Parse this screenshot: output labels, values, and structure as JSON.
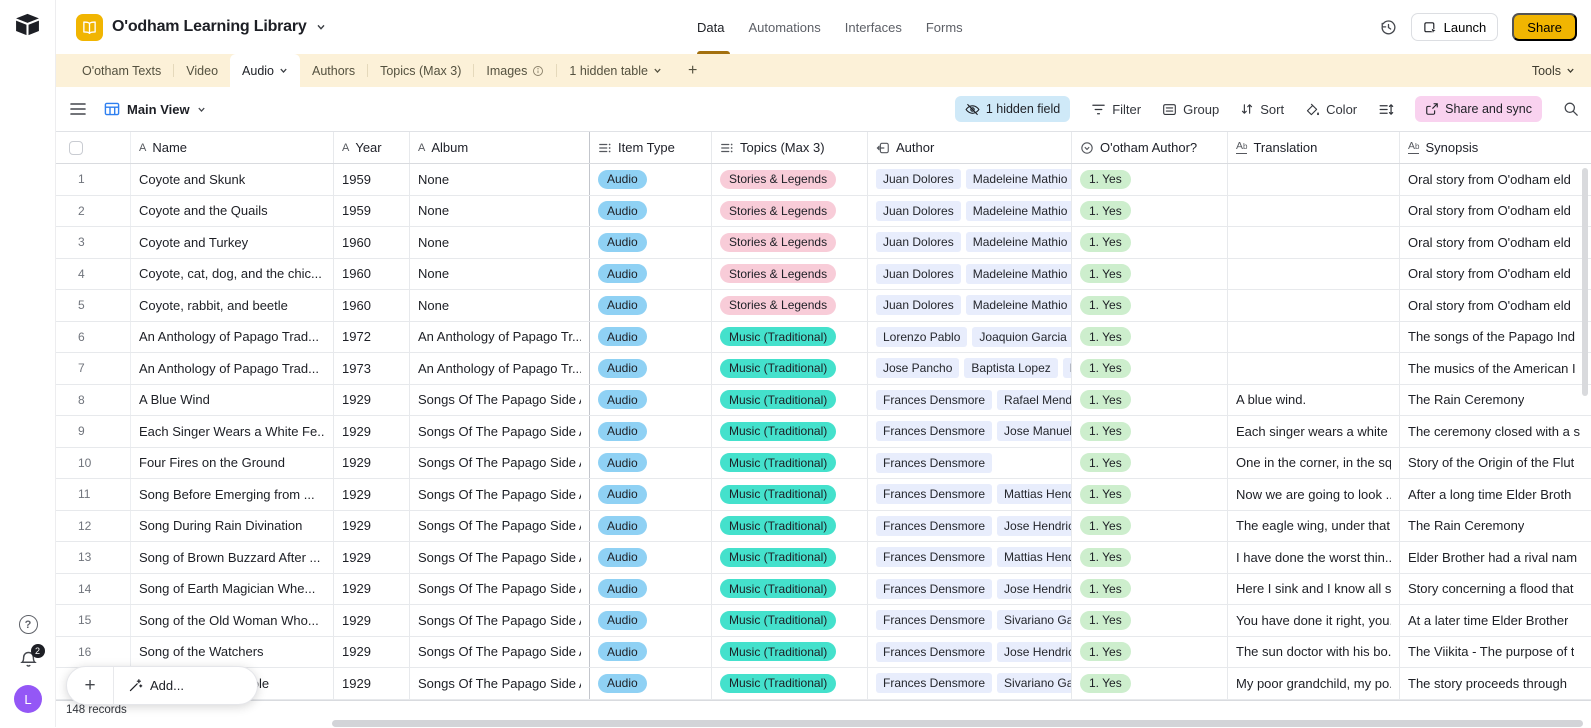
{
  "header": {
    "title": "O'odham Learning Library",
    "nav_items": [
      "Data",
      "Automations",
      "Interfaces",
      "Forms"
    ],
    "active_nav": "Data",
    "launch_label": "Launch",
    "share_label": "Share"
  },
  "tabs": {
    "items": [
      {
        "label": "O'otham Texts"
      },
      {
        "label": "Video"
      },
      {
        "label": "Audio",
        "active": true,
        "chevron": true
      },
      {
        "label": "Authors"
      },
      {
        "label": "Topics (Max 3)"
      },
      {
        "label": "Images",
        "info": true
      },
      {
        "label": "1 hidden table",
        "chevron": true
      }
    ],
    "add_label": "+",
    "tools_label": "Tools"
  },
  "toolbar": {
    "view_name": "Main View",
    "hidden_field_label": "1 hidden field",
    "filter_label": "Filter",
    "group_label": "Group",
    "sort_label": "Sort",
    "color_label": "Color",
    "share_sync_label": "Share and sync"
  },
  "table": {
    "columns": [
      {
        "key": "num",
        "label": "",
        "icon": "checkbox"
      },
      {
        "key": "name",
        "label": "Name",
        "icon": "text-field-icon"
      },
      {
        "key": "year",
        "label": "Year",
        "icon": "text-field-icon"
      },
      {
        "key": "album",
        "label": "Album",
        "icon": "text-field-icon"
      },
      {
        "key": "item_type",
        "label": "Item Type",
        "icon": "select-icon"
      },
      {
        "key": "topics",
        "label": "Topics (Max 3)",
        "icon": "multi-select-icon"
      },
      {
        "key": "author",
        "label": "Author",
        "icon": "linked-record-icon"
      },
      {
        "key": "ootham",
        "label": "O'otham Author?",
        "icon": "single-select-icon"
      },
      {
        "key": "translation",
        "label": "Translation",
        "icon": "long-text-icon"
      },
      {
        "key": "synopsis",
        "label": "Synopsis",
        "icon": "long-text-icon"
      }
    ],
    "rows": [
      {
        "num": 1,
        "name": "Coyote and Skunk",
        "year": "1959",
        "album": "None",
        "item_type": "Audio",
        "topics": "Stories & Legends",
        "authors": [
          "Juan Dolores",
          "Madeleine Mathio"
        ],
        "ootham": "1. Yes",
        "translation": "",
        "synopsis": "Oral story from O'odham eld"
      },
      {
        "num": 2,
        "name": "Coyote and the Quails",
        "year": "1959",
        "album": "None",
        "item_type": "Audio",
        "topics": "Stories & Legends",
        "authors": [
          "Juan Dolores",
          "Madeleine Mathio"
        ],
        "ootham": "1. Yes",
        "translation": "",
        "synopsis": "Oral story from O'odham eld"
      },
      {
        "num": 3,
        "name": "Coyote and Turkey",
        "year": "1960",
        "album": "None",
        "item_type": "Audio",
        "topics": "Stories & Legends",
        "authors": [
          "Juan Dolores",
          "Madeleine Mathio"
        ],
        "ootham": "1. Yes",
        "translation": "",
        "synopsis": "Oral story from O'odham eld"
      },
      {
        "num": 4,
        "name": "Coyote, cat, dog, and the chic...",
        "year": "1960",
        "album": "None",
        "item_type": "Audio",
        "topics": "Stories & Legends",
        "authors": [
          "Juan Dolores",
          "Madeleine Mathio"
        ],
        "ootham": "1. Yes",
        "translation": "",
        "synopsis": "Oral story from O'odham eld"
      },
      {
        "num": 5,
        "name": "Coyote, rabbit, and beetle",
        "year": "1960",
        "album": "None",
        "item_type": "Audio",
        "topics": "Stories & Legends",
        "authors": [
          "Juan Dolores",
          "Madeleine Mathio"
        ],
        "ootham": "1. Yes",
        "translation": "",
        "synopsis": "Oral story from O'odham eld"
      },
      {
        "num": 6,
        "name": "An Anthology of Papago Trad...",
        "year": "1972",
        "album": "An Anthology of Papago Tr...",
        "item_type": "Audio",
        "topics": "Music (Traditional)",
        "authors": [
          "Lorenzo Pablo",
          "Joaquion Garcia"
        ],
        "ootham": "1. Yes",
        "translation": "",
        "synopsis": "The songs of the Papago Ind"
      },
      {
        "num": 7,
        "name": "An Anthology of Papago Trad...",
        "year": "1973",
        "album": "An Anthology of Papago Tr...",
        "item_type": "Audio",
        "topics": "Music (Traditional)",
        "authors": [
          "Jose Pancho",
          "Baptista Lopez",
          "M"
        ],
        "ootham": "1. Yes",
        "translation": "",
        "synopsis": "The musics of the American I"
      },
      {
        "num": 8,
        "name": "A Blue Wind",
        "year": "1929",
        "album": "Songs Of The Papago Side A",
        "item_type": "Audio",
        "topics": "Music (Traditional)",
        "authors": [
          "Frances Densmore",
          "Rafael Mend"
        ],
        "ootham": "1. Yes",
        "translation": "A blue wind.",
        "synopsis": "The Rain Ceremony"
      },
      {
        "num": 9,
        "name": "Each Singer Wears a White Fe...",
        "year": "1929",
        "album": "Songs Of The Papago Side A",
        "item_type": "Audio",
        "topics": "Music (Traditional)",
        "authors": [
          "Frances Densmore",
          "Jose Manuel"
        ],
        "ootham": "1. Yes",
        "translation": "Each singer wears a white f...",
        "synopsis": "The ceremony closed with a s"
      },
      {
        "num": 10,
        "name": "Four Fires on the Ground",
        "year": "1929",
        "album": "Songs Of The Papago Side A",
        "item_type": "Audio",
        "topics": "Music (Traditional)",
        "authors": [
          "Frances Densmore"
        ],
        "ootham": "1. Yes",
        "translation": "One in the corner, in the sq...",
        "synopsis": "Story of the Origin of the Flut"
      },
      {
        "num": 11,
        "name": "Song Before Emerging from ...",
        "year": "1929",
        "album": "Songs Of The Papago Side A",
        "item_type": "Audio",
        "topics": "Music (Traditional)",
        "authors": [
          "Frances Densmore",
          "Mattias Hend"
        ],
        "ootham": "1. Yes",
        "translation": "Now we are going to look ...",
        "synopsis": "After a long time Elder Broth"
      },
      {
        "num": 12,
        "name": "Song During Rain Divination",
        "year": "1929",
        "album": "Songs Of The Papago Side A",
        "item_type": "Audio",
        "topics": "Music (Traditional)",
        "authors": [
          "Frances Densmore",
          "Jose Hendric"
        ],
        "ootham": "1. Yes",
        "translation": "The eagle wing, under that ...",
        "synopsis": "The Rain Ceremony"
      },
      {
        "num": 13,
        "name": "Song of Brown Buzzard After ...",
        "year": "1929",
        "album": "Songs Of The Papago Side A",
        "item_type": "Audio",
        "topics": "Music (Traditional)",
        "authors": [
          "Frances Densmore",
          "Mattias Hend"
        ],
        "ootham": "1. Yes",
        "translation": "I have done the worst thin...",
        "synopsis": "Elder Brother had a rival nam"
      },
      {
        "num": 14,
        "name": "Song of Earth Magician Whe...",
        "year": "1929",
        "album": "Songs Of The Papago Side A",
        "item_type": "Audio",
        "topics": "Music (Traditional)",
        "authors": [
          "Frances Densmore",
          "Jose Hendric"
        ],
        "ootham": "1. Yes",
        "translation": "Here I sink and I know all s...",
        "synopsis": "Story concerning a flood that"
      },
      {
        "num": 15,
        "name": "Song of the Old Woman Who...",
        "year": "1929",
        "album": "Songs Of The Papago Side A",
        "item_type": "Audio",
        "topics": "Music (Traditional)",
        "authors": [
          "Frances Densmore",
          "Sivariano Ga"
        ],
        "ootham": "1. Yes",
        "translation": "You have done it right, you...",
        "synopsis": "At a later time Elder Brother"
      },
      {
        "num": 16,
        "name": "Song of the Watchers",
        "year": "1929",
        "album": "Songs Of The Papago Side A",
        "item_type": "Audio",
        "topics": "Music (Traditional)",
        "authors": [
          "Frances Densmore",
          "Jose Hendric"
        ],
        "ootham": "1. Yes",
        "translation": "The sun doctor with his bo...",
        "synopsis": "The Viikita - The purpose of t"
      },
      {
        "num": 17,
        "name": "Make the Boy Invisible",
        "year": "1929",
        "album": "Songs Of The Papago Side A",
        "item_type": "Audio",
        "topics": "Music (Traditional)",
        "authors": [
          "Frances Densmore",
          "Sivariano Ga"
        ],
        "ootham": "1. Yes",
        "translation": "My poor grandchild, my po...",
        "synopsis": "The story proceeds through"
      }
    ]
  },
  "footer": {
    "records_label": "148 records",
    "add_label": "Add..."
  },
  "sidebar": {
    "notification_count": "2",
    "avatar_letter": "L"
  },
  "colors": {
    "accent_amber": "#f1b501",
    "nav_underline": "#a3700e",
    "tab_bar_bg": "#fcf1d8",
    "hidden_field_pill": "#cfe9f8",
    "share_sync_pill": "#f9d2ef",
    "item_type_pill": "#8fd1f4",
    "author_pill": "#e8edfc",
    "yes_pill": "#cdeecd",
    "avatar_purple": "#9457f6",
    "topic_colors": {
      "Stories & Legends": "#f8ccd8",
      "Music (Traditional)": "#44e1cc"
    }
  }
}
